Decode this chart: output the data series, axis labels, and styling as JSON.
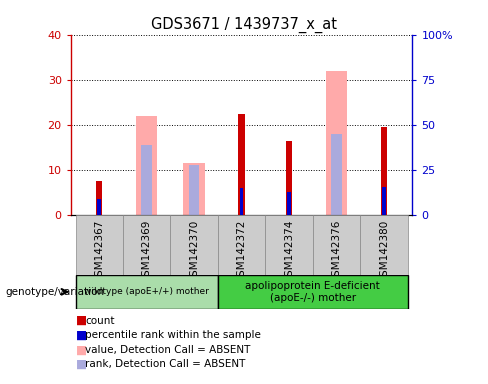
{
  "title": "GDS3671 / 1439737_x_at",
  "samples": [
    "GSM142367",
    "GSM142369",
    "GSM142370",
    "GSM142372",
    "GSM142374",
    "GSM142376",
    "GSM142380"
  ],
  "count_values": [
    7.5,
    0,
    0,
    22.5,
    16.5,
    0,
    19.5
  ],
  "percentile_values": [
    9.0,
    0,
    0,
    15.0,
    12.5,
    0,
    15.5
  ],
  "absent_value_values": [
    0,
    22.0,
    11.5,
    0,
    0,
    32.0,
    0
  ],
  "absent_rank_values": [
    0,
    15.5,
    11.0,
    0,
    0,
    18.0,
    0
  ],
  "count_color": "#cc0000",
  "percentile_color": "#0000cc",
  "absent_value_color": "#ffaaaa",
  "absent_rank_color": "#aaaadd",
  "ylim_left": [
    0,
    40
  ],
  "ylim_right": [
    0,
    100
  ],
  "yticks_left": [
    0,
    10,
    20,
    30,
    40
  ],
  "yticks_right": [
    0,
    25,
    50,
    75,
    100
  ],
  "ytick_labels_right": [
    "0",
    "25",
    "50",
    "75",
    "100%"
  ],
  "group1_label": "wildtype (apoE+/+) mother",
  "group2_label": "apolipoprotein E-deficient\n(apoE-/-) mother",
  "genotype_label": "genotype/variation",
  "legend_items": [
    {
      "label": "count",
      "color": "#cc0000"
    },
    {
      "label": "percentile rank within the sample",
      "color": "#0000cc"
    },
    {
      "label": "value, Detection Call = ABSENT",
      "color": "#ffaaaa"
    },
    {
      "label": "rank, Detection Call = ABSENT",
      "color": "#aaaadd"
    }
  ],
  "bg_color": "#ffffff",
  "ytick_color_left": "#cc0000",
  "ytick_color_right": "#0000cc",
  "group1_color": "#aaddaa",
  "group2_color": "#44cc44",
  "xticklabel_bg": "#cccccc"
}
